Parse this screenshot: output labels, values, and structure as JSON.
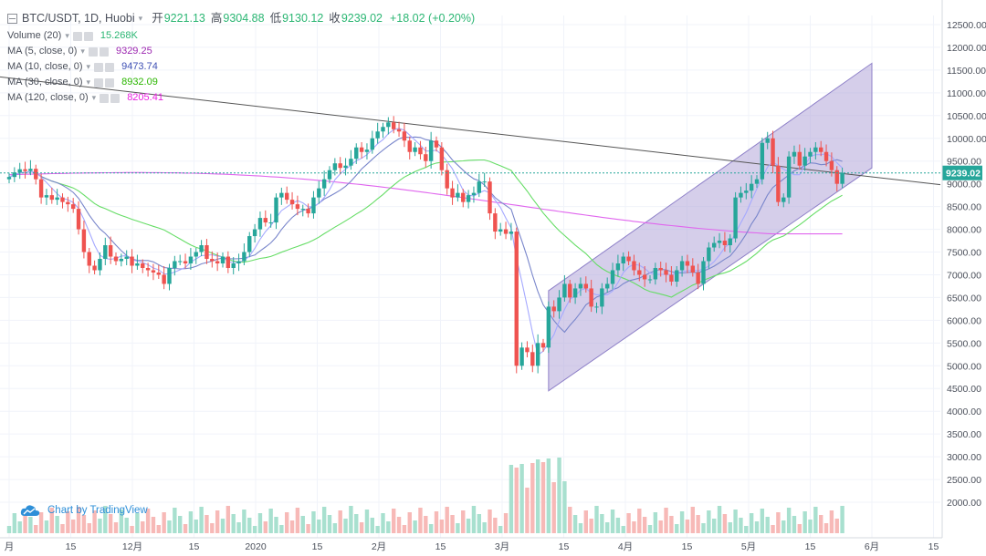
{
  "header": {
    "symbol_line": "BTC/USDT, 1D, Huobi",
    "open_label": "开",
    "open": "9221.13",
    "high_label": "高",
    "high": "9304.88",
    "low_label": "低",
    "low": "9130.12",
    "close_label": "收",
    "close": "9239.02",
    "change": "+18.02 (+0.20%)"
  },
  "indicators": [
    {
      "label": "Volume (20)",
      "value": "15.268K",
      "color": "#2bb673"
    },
    {
      "label": "MA (5, close, 0)",
      "value": "9329.25",
      "color": "#9c27b0"
    },
    {
      "label": "MA (10, close, 0)",
      "value": "9473.74",
      "color": "#3f51b5"
    },
    {
      "label": "MA (30, close, 0)",
      "value": "8932.09",
      "color": "#4caf50"
    },
    {
      "label": "MA (120, close, 0)",
      "value": "8205.41",
      "color": "#e91ee0"
    }
  ],
  "watermark": "Chart by TradingView",
  "price_badge": "9239.02",
  "colors": {
    "up": "#26a69a",
    "down": "#ef5350",
    "ma5": "#a5a9ff",
    "ma10": "#7986cb",
    "ma30": "#66dd66",
    "ma120": "#e066ee",
    "channel": "#b3a6d9",
    "trend": "#555555"
  },
  "chart_data": {
    "type": "candlestick",
    "y_axis": {
      "min": 1800,
      "max": 12700,
      "ticks": [
        "12500.00",
        "12000.00",
        "11500.00",
        "11000.00",
        "10500.00",
        "10000.00",
        "9500.00",
        "9000.00",
        "8500.00",
        "8000.00",
        "7500.00",
        "7000.00",
        "6500.00",
        "6000.00",
        "5500.00",
        "5000.00",
        "4500.00",
        "4000.00",
        "3500.00",
        "3000.00",
        "2500.00",
        "2000.00"
      ]
    },
    "x_axis": {
      "labels": [
        "月",
        "15",
        "12月",
        "15",
        "2020",
        "15",
        "2月",
        "15",
        "3月",
        "15",
        "4月",
        "15",
        "5月",
        "15",
        "6月",
        "15"
      ]
    },
    "close": [
      9150,
      9250,
      9320,
      9280,
      9330,
      9100,
      8700,
      8750,
      8650,
      8700,
      8600,
      8550,
      8450,
      8000,
      7500,
      7200,
      7100,
      7350,
      7650,
      7400,
      7300,
      7350,
      7400,
      7200,
      7250,
      7150,
      7100,
      7050,
      7000,
      6800,
      7150,
      7300,
      7300,
      7250,
      7400,
      7500,
      7650,
      7350,
      7300,
      7250,
      7400,
      7150,
      7250,
      7300,
      7500,
      7850,
      8000,
      8250,
      8150,
      8150,
      8700,
      8800,
      8650,
      8550,
      8450,
      8450,
      8350,
      8700,
      8900,
      9100,
      9300,
      9450,
      9350,
      9400,
      9550,
      9800,
      9700,
      9750,
      10000,
      10150,
      10250,
      10350,
      10200,
      10150,
      9950,
      9700,
      9800,
      9650,
      9500,
      9950,
      9800,
      9300,
      8900,
      8700,
      8800,
      8600,
      8750,
      8800,
      9050,
      9050,
      8350,
      7950,
      8000,
      7900,
      7950,
      5000,
      5400,
      5300,
      5000,
      5500,
      5400,
      6300,
      6200,
      6500,
      6800,
      6500,
      6700,
      6800,
      6700,
      6300,
      6300,
      6700,
      6800,
      7100,
      7250,
      7400,
      7300,
      7100,
      7000,
      6900,
      6900,
      7150,
      7100,
      7000,
      6850,
      7100,
      7300,
      7200,
      7050,
      6800,
      7300,
      7600,
      7700,
      7750,
      7650,
      7800,
      8700,
      8800,
      8850,
      9000,
      9100,
      9900,
      10000,
      9400,
      8600,
      8700,
      9600,
      9700,
      9400,
      9600,
      9700,
      9800,
      9700,
      9500,
      9300,
      9000,
      9240
    ]
  }
}
